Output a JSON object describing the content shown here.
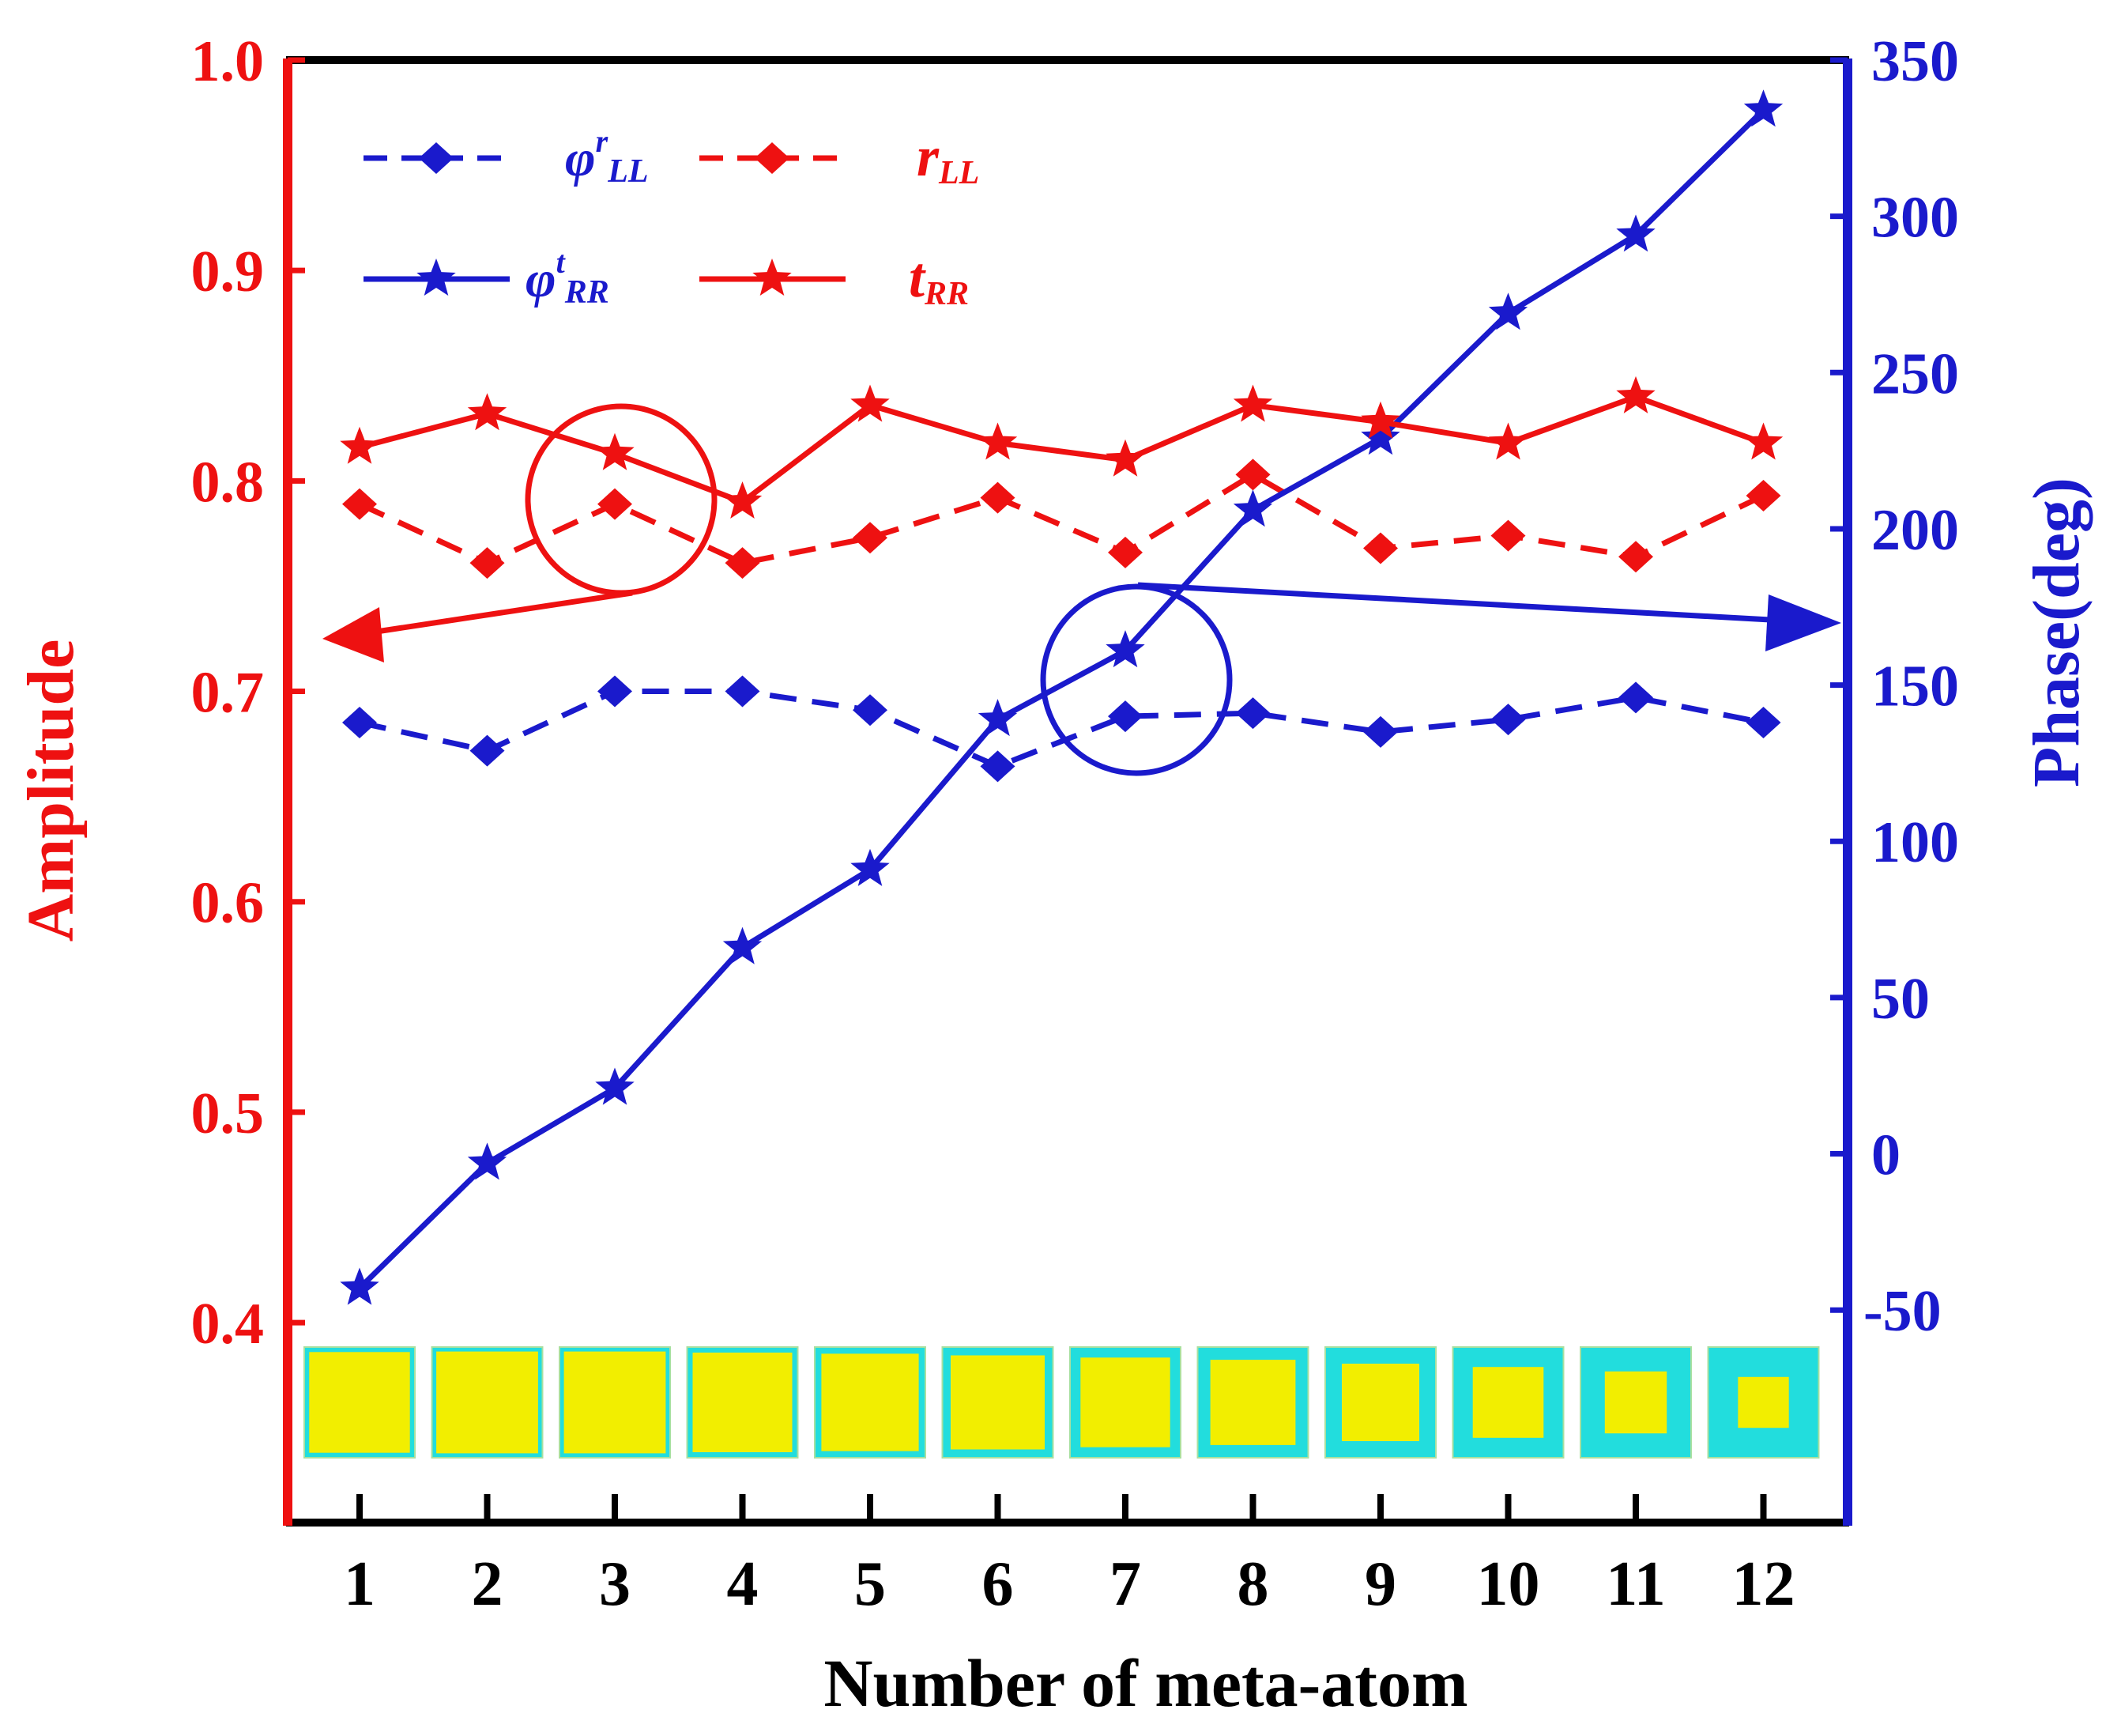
{
  "chart_data": {
    "type": "line",
    "xlabel": "Number of meta-atom",
    "ylabel_left": "Amplitude",
    "ylabel_right": "Phase(deg)",
    "x": [
      1,
      2,
      3,
      4,
      5,
      6,
      7,
      8,
      9,
      10,
      11,
      12
    ],
    "x_tick_labels": [
      "1",
      "2",
      "3",
      "4",
      "5",
      "6",
      "7",
      "8",
      "9",
      "10",
      "11",
      "12"
    ],
    "ylim_left": [
      0.305,
      1.0
    ],
    "yticks_left": [
      "0.4",
      "0.5",
      "0.6",
      "0.7",
      "0.8",
      "0.9",
      "1.0"
    ],
    "ylim_right": [
      -118,
      350
    ],
    "yticks_right": [
      "-50",
      "0",
      "50",
      "100",
      "150",
      "200",
      "250",
      "300",
      "350"
    ],
    "series": [
      {
        "name": "φ^r_LL",
        "name_base": "φ",
        "name_sup": "r",
        "name_sub": "LL",
        "axis": "right",
        "style": "dashed",
        "marker": "diamond",
        "color": "#1a1acc",
        "values": [
          138,
          129,
          148,
          148,
          142,
          124,
          140,
          141,
          135,
          139,
          146,
          138
        ]
      },
      {
        "name": "r_LL",
        "name_base": "r",
        "name_sup": "",
        "name_sub": "LL",
        "axis": "left",
        "style": "dashed",
        "marker": "diamond",
        "color": "#ee1111",
        "values": [
          0.789,
          0.761,
          0.789,
          0.761,
          0.773,
          0.792,
          0.766,
          0.803,
          0.768,
          0.774,
          0.764,
          0.793
        ]
      },
      {
        "name": "φ^t_RR",
        "name_base": "φ",
        "name_sup": "t",
        "name_sub": "RR",
        "axis": "right",
        "style": "solid",
        "marker": "star",
        "color": "#1a1acc",
        "values": [
          -43,
          -3,
          21,
          66,
          91,
          139,
          161,
          206,
          229,
          269,
          294,
          334
        ]
      },
      {
        "name": "t_RR",
        "name_base": "t",
        "name_sup": "",
        "name_sub": "RR",
        "axis": "left",
        "style": "solid",
        "marker": "star",
        "color": "#ee1111",
        "values": [
          0.816,
          0.832,
          0.813,
          0.79,
          0.836,
          0.818,
          0.81,
          0.836,
          0.828,
          0.818,
          0.84,
          0.818
        ]
      }
    ],
    "legend_position": "top-left",
    "annotations": [
      {
        "type": "circle",
        "series": "left (red)",
        "arrow": "points to left axis"
      },
      {
        "type": "circle",
        "series": "right (blue)",
        "arrow": "points to right axis"
      }
    ],
    "meta_atom_inner_size": [
      0.91,
      0.92,
      0.92,
      0.9,
      0.88,
      0.85,
      0.81,
      0.77,
      0.7,
      0.64,
      0.56,
      0.46
    ],
    "colors": {
      "left_axis": "#ee1111",
      "right_axis": "#1a1acc",
      "frame_top": "#000000",
      "tile_fill": "#f2ee00",
      "tile_border": "#22dddd"
    }
  }
}
